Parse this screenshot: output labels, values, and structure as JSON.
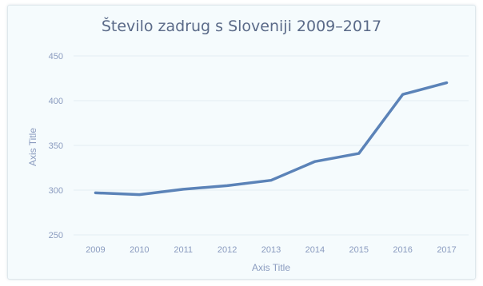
{
  "chart_data": {
    "type": "line",
    "title": "Število zadrug s Sloveniji 2009–2017",
    "xlabel": "Axis Title",
    "ylabel": "Axis Title",
    "categories": [
      "2009",
      "2010",
      "2011",
      "2012",
      "2013",
      "2014",
      "2015",
      "2016",
      "2017"
    ],
    "series": [
      {
        "values": [
          297,
          295,
          301,
          305,
          311,
          332,
          341,
          407,
          420
        ]
      }
    ],
    "ylim": [
      250,
      450
    ],
    "yticks": [
      250,
      300,
      350,
      400,
      450
    ],
    "grid": true,
    "legend": "none",
    "colors": {
      "line": "#5b83b8",
      "grid": "#e3eef4",
      "text": "#8a9bbf",
      "title": "#5a6a88"
    }
  }
}
